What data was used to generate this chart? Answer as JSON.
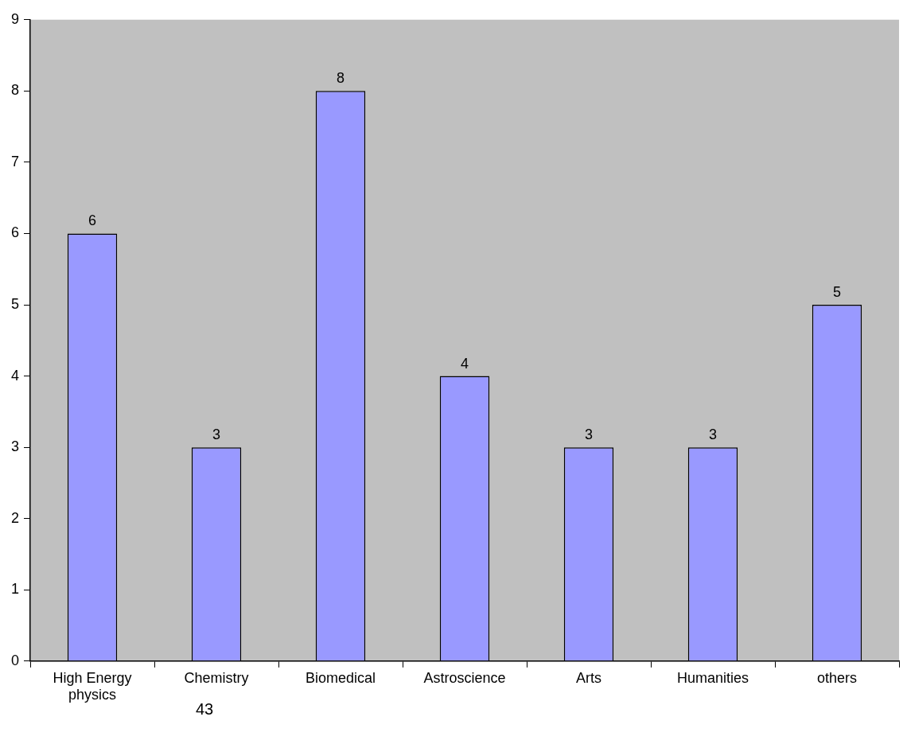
{
  "chart_data": {
    "type": "bar",
    "categories": [
      "High Energy physics",
      "Chemistry",
      "Biomedical",
      "Astroscience",
      "Arts",
      "Humanities",
      "others"
    ],
    "values": [
      6,
      3,
      8,
      4,
      3,
      3,
      5
    ],
    "color": "#9999ff",
    "ylim": [
      0,
      9
    ],
    "yticks": [
      0,
      1,
      2,
      3,
      4,
      5,
      6,
      7,
      8,
      9
    ],
    "grid": false,
    "legend": false,
    "data_labels": true,
    "annotations": [
      "43"
    ]
  }
}
